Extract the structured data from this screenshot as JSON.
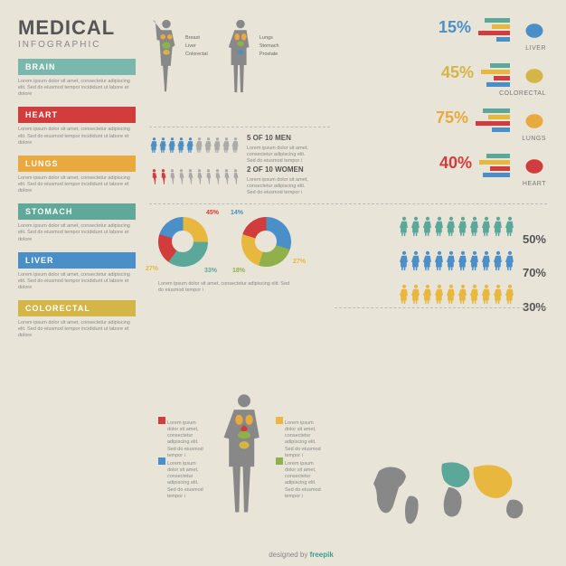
{
  "title": "MEDICAL",
  "subtitle": "INFOGRAPHIC",
  "colors": {
    "brain": "#7ab8ad",
    "heart": "#d13c3c",
    "lungs": "#e8a93e",
    "stomach": "#5fa89a",
    "liver": "#4a8fc7",
    "colorectal": "#d4b547",
    "teal": "#5ba89a",
    "green": "#8fb04a",
    "blue": "#4a8fc7",
    "yellow": "#e8b83e",
    "red": "#d13c3c",
    "gray": "#888",
    "darkgray": "#666"
  },
  "lorem": "Lorem ipsum dolor sit amet, consectetur adipiscing elit. Sed do eiusmod tempor incididunt ut labore et dolore magna aliqua.",
  "sections": [
    {
      "name": "BRAIN",
      "color": "#7ab8ad"
    },
    {
      "name": "HEART",
      "color": "#d13c3c"
    },
    {
      "name": "LUNGS",
      "color": "#e8a93e"
    },
    {
      "name": "STOMACH",
      "color": "#5fa89a"
    },
    {
      "name": "LIVER",
      "color": "#4a8fc7"
    },
    {
      "name": "COLORECTAL",
      "color": "#d4b547"
    }
  ],
  "body_labels": {
    "female": [
      "Breast",
      "Liver",
      "Colorectal"
    ],
    "male": [
      "Lungs",
      "Stomach",
      "Prostate"
    ]
  },
  "organ_stats": [
    {
      "pct": "15%",
      "name": "LIVER",
      "color": "#4a8fc7",
      "bars": [
        [
          "#5ba89a",
          28
        ],
        [
          "#e8b83e",
          20
        ],
        [
          "#d13c3c",
          35
        ],
        [
          "#4a8fc7",
          15
        ]
      ]
    },
    {
      "pct": "45%",
      "name": "COLORECTAL",
      "color": "#d4b547",
      "bars": [
        [
          "#5ba89a",
          22
        ],
        [
          "#e8b83e",
          32
        ],
        [
          "#d13c3c",
          18
        ],
        [
          "#4a8fc7",
          26
        ]
      ]
    },
    {
      "pct": "75%",
      "name": "LUNGS",
      "color": "#e8a93e",
      "bars": [
        [
          "#5ba89a",
          30
        ],
        [
          "#e8b83e",
          24
        ],
        [
          "#d13c3c",
          38
        ],
        [
          "#4a8fc7",
          20
        ]
      ]
    },
    {
      "pct": "40%",
      "name": "HEART",
      "color": "#d13c3c",
      "bars": [
        [
          "#5ba89a",
          26
        ],
        [
          "#e8b83e",
          34
        ],
        [
          "#d13c3c",
          22
        ],
        [
          "#4a8fc7",
          30
        ]
      ]
    }
  ],
  "ratio_stats": [
    {
      "text": "5 OF 10 MEN",
      "filled": 5,
      "total": 10,
      "fill_color": "#4a8fc7",
      "empty_color": "#aaa"
    },
    {
      "text": "2 OF 10 WOMEN",
      "filled": 2,
      "total": 10,
      "fill_color": "#d13c3c",
      "empty_color": "#aaa"
    }
  ],
  "donuts": [
    {
      "segments": [
        [
          "#e8b83e",
          25
        ],
        [
          "#5ba89a",
          35
        ],
        [
          "#d13c3c",
          20
        ],
        [
          "#4a8fc7",
          20
        ]
      ],
      "labels": [
        "45%",
        "27%",
        "33%"
      ]
    },
    {
      "segments": [
        [
          "#4a8fc7",
          30
        ],
        [
          "#8fb04a",
          25
        ],
        [
          "#e8b83e",
          25
        ],
        [
          "#d13c3c",
          20
        ]
      ],
      "labels": [
        "14%",
        "18%",
        "27%"
      ]
    }
  ],
  "people_grid": {
    "rows": [
      {
        "color": "#5ba89a",
        "pct": "50%"
      },
      {
        "color": "#4a8fc7",
        "pct": "70%"
      },
      {
        "color": "#e8b83e",
        "pct": "30%"
      }
    ],
    "count_per_row": 10
  },
  "map_colors": [
    "#5ba89a",
    "#e8b83e",
    "#888"
  ],
  "credit_text": "designed by",
  "credit_brand": "freepik"
}
